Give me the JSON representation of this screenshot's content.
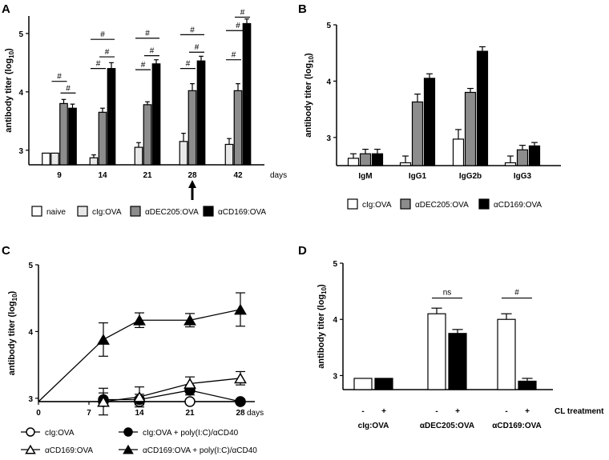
{
  "colors": {
    "naive": "#ffffff",
    "cig": "#e8e8e8",
    "dec": "#8c8c8c",
    "cd169": "#000000",
    "axis": "#000000"
  },
  "chart_data": [
    {
      "panel": "A",
      "type": "bar",
      "ylabel_main": "antibody titer (log",
      "ylabel_sub": "10",
      "ylabel_end": ")",
      "ylim": [
        2.75,
        5.3
      ],
      "yticks": [
        "3",
        "4",
        "5"
      ],
      "ytick_values": [
        3,
        4,
        5
      ],
      "categories": [
        "9",
        "14",
        "21",
        "28",
        "42"
      ],
      "xunit": "days",
      "series": [
        {
          "name": "naive",
          "color_key": "naive",
          "values": [
            2.95,
            null,
            null,
            null,
            null
          ],
          "errors": [
            0,
            null,
            null,
            null,
            null
          ]
        },
        {
          "name": "cIg:OVA",
          "color_key": "cig",
          "values": [
            2.95,
            2.87,
            3.05,
            3.15,
            3.1
          ],
          "errors": [
            0,
            0.05,
            0.08,
            0.14,
            0.1
          ]
        },
        {
          "name": "αDEC205:OVA",
          "color_key": "dec",
          "values": [
            3.8,
            3.65,
            3.78,
            4.02,
            4.02
          ],
          "errors": [
            0.07,
            0.07,
            0.05,
            0.12,
            0.12
          ]
        },
        {
          "name": "αCD169:OVA",
          "color_key": "cd169",
          "values": [
            3.72,
            4.4,
            4.48,
            4.53,
            5.17
          ],
          "errors": [
            0.07,
            0.1,
            0.07,
            0.08,
            0.08
          ]
        }
      ],
      "significance": [
        {
          "category": "9",
          "from": "αDEC205:OVA",
          "to": "αCD169:OVA",
          "label": "#",
          "y": 3.98
        },
        {
          "category": "9",
          "from": "cIg:OVA",
          "to": "αDEC205:OVA",
          "label": "#",
          "y": 4.18
        },
        {
          "category": "14",
          "from": "cIg:OVA",
          "to": "αDEC205:OVA",
          "label": "#",
          "y": 4.4
        },
        {
          "category": "14",
          "from": "αDEC205:OVA",
          "to": "αCD169:OVA",
          "label": "#",
          "y": 4.6
        },
        {
          "category": "14",
          "from": "cIg:OVA",
          "to": "αCD169:OVA",
          "label": "#",
          "y": 4.9
        },
        {
          "category": "21",
          "from": "cIg:OVA",
          "to": "αDEC205:OVA",
          "label": "#",
          "y": 4.38
        },
        {
          "category": "21",
          "from": "αDEC205:OVA",
          "to": "αCD169:OVA",
          "label": "#",
          "y": 4.62
        },
        {
          "category": "21",
          "from": "cIg:OVA",
          "to": "αCD169:OVA",
          "label": "#",
          "y": 4.92
        },
        {
          "category": "28",
          "from": "cIg:OVA",
          "to": "αDEC205:OVA",
          "label": "#",
          "y": 4.4
        },
        {
          "category": "28",
          "from": "αDEC205:OVA",
          "to": "αCD169:OVA",
          "label": "#",
          "y": 4.68
        },
        {
          "category": "28",
          "from": "cIg:OVA",
          "to": "αCD169:OVA",
          "label": "#",
          "y": 4.98
        },
        {
          "category": "42",
          "from": "cIg:OVA",
          "to": "αDEC205:OVA",
          "label": "#",
          "y": 4.55
        },
        {
          "category": "42",
          "from": "αDEC205:OVA",
          "to": "αCD169:OVA",
          "label": "#",
          "y": 5.28
        },
        {
          "category": "42",
          "from": "cIg:OVA",
          "to": "αCD169:OVA",
          "label": "#",
          "y": 5.05
        }
      ],
      "annotation": "arrow under day 28",
      "legend": [
        "naive",
        "cIg:OVA",
        "αDEC205:OVA",
        "αCD169:OVA"
      ]
    },
    {
      "panel": "B",
      "type": "bar",
      "ylabel_main": "antibody titer (log",
      "ylabel_sub": "10",
      "ylabel_end": ")",
      "ylim": [
        2.5,
        5.0
      ],
      "yticks": [
        "3",
        "4",
        "5"
      ],
      "ytick_values": [
        3,
        4,
        5
      ],
      "categories": [
        "IgM",
        "IgG1",
        "IgG2b",
        "IgG3"
      ],
      "series": [
        {
          "name": "cIg:OVA",
          "color_key": "naive",
          "values": [
            2.63,
            2.55,
            2.97,
            2.55
          ],
          "errors": [
            0.08,
            0.12,
            0.17,
            0.12
          ]
        },
        {
          "name": "αDEC205:OVA",
          "color_key": "dec",
          "values": [
            2.71,
            3.63,
            3.8,
            2.78
          ],
          "errors": [
            0.08,
            0.14,
            0.07,
            0.08
          ]
        },
        {
          "name": "αCD169:OVA",
          "color_key": "cd169",
          "values": [
            2.71,
            4.05,
            4.53,
            2.85
          ],
          "errors": [
            0.08,
            0.08,
            0.08,
            0.06
          ]
        }
      ],
      "legend": [
        "cIg:OVA",
        "αDEC205:OVA",
        "αCD169:OVA"
      ]
    },
    {
      "panel": "C",
      "type": "line",
      "ylabel_main": "antibody titer (log",
      "ylabel_sub": "10",
      "ylabel_end": ")",
      "xlim": [
        0,
        30
      ],
      "ylim": [
        2.95,
        5.0
      ],
      "xticks": [
        "0",
        "7",
        "14",
        "21",
        "28"
      ],
      "xtick_values": [
        0,
        7,
        14,
        21,
        28
      ],
      "xunit": "days",
      "yticks": [
        "3",
        "4",
        "5"
      ],
      "ytick_values": [
        3,
        4,
        5
      ],
      "series": [
        {
          "name": "cIg:OVA",
          "marker": "circle-open",
          "x": [
            9,
            14,
            21,
            28
          ],
          "y": [
            2.95,
            2.95,
            2.95,
            2.95
          ],
          "errors": [
            0,
            0,
            0,
            0
          ],
          "line_from_origin": true
        },
        {
          "name": "cIg:OVA + poly(I:C)/αCD40",
          "marker": "circle-filled",
          "x": [
            9,
            14,
            21,
            28
          ],
          "y": [
            2.98,
            2.98,
            3.12,
            2.95
          ],
          "errors": [
            0.1,
            0.08,
            0.07,
            0
          ],
          "line_from_origin": false
        },
        {
          "name": "αCD169:OVA",
          "marker": "triangle-open",
          "x": [
            9,
            14,
            21,
            28
          ],
          "y": [
            2.95,
            3.02,
            3.22,
            3.3
          ],
          "errors": [
            0.2,
            0.15,
            0.1,
            0.1
          ],
          "line_from_origin": false
        },
        {
          "name": "αCD169:OVA + poly(I:C)/αCD40",
          "marker": "triangle-filled",
          "x": [
            9,
            14,
            21,
            28
          ],
          "y": [
            3.88,
            4.17,
            4.17,
            4.33
          ],
          "errors": [
            0.25,
            0.11,
            0.1,
            0.25
          ],
          "line_from_origin": true
        }
      ],
      "legend": [
        "cIg:OVA",
        "cIg:OVA + poly(I:C)/αCD40",
        "αCD169:OVA",
        "αCD169:OVA + poly(I:C)/αCD40"
      ]
    },
    {
      "panel": "D",
      "type": "bar",
      "ylabel_main": "antibody titer (log",
      "ylabel_sub": "10",
      "ylabel_end": ")",
      "ylim": [
        2.75,
        5.0
      ],
      "yticks": [
        "3",
        "4",
        "5"
      ],
      "ytick_values": [
        3,
        4,
        5
      ],
      "groups": [
        "cIg:OVA",
        "αDEC205:OVA",
        "αCD169:OVA"
      ],
      "treatment_marks": [
        "-",
        "+",
        "-",
        "+",
        "-",
        "+"
      ],
      "treatment_label": "CL treatment",
      "series": [
        {
          "name": "- CL",
          "color_key": "naive",
          "values": [
            2.95,
            4.1,
            4.0
          ],
          "errors": [
            0,
            0.1,
            0.1
          ]
        },
        {
          "name": "+ CL",
          "color_key": "cd169",
          "values": [
            2.95,
            3.75,
            2.9
          ],
          "errors": [
            0,
            0.07,
            0.05
          ]
        }
      ],
      "significance": [
        {
          "group": "αDEC205:OVA",
          "label": "ns",
          "y": 4.38
        },
        {
          "group": "αCD169:OVA",
          "label": "#",
          "y": 4.38
        }
      ]
    }
  ],
  "panel_labels": [
    "A",
    "B",
    "C",
    "D"
  ]
}
